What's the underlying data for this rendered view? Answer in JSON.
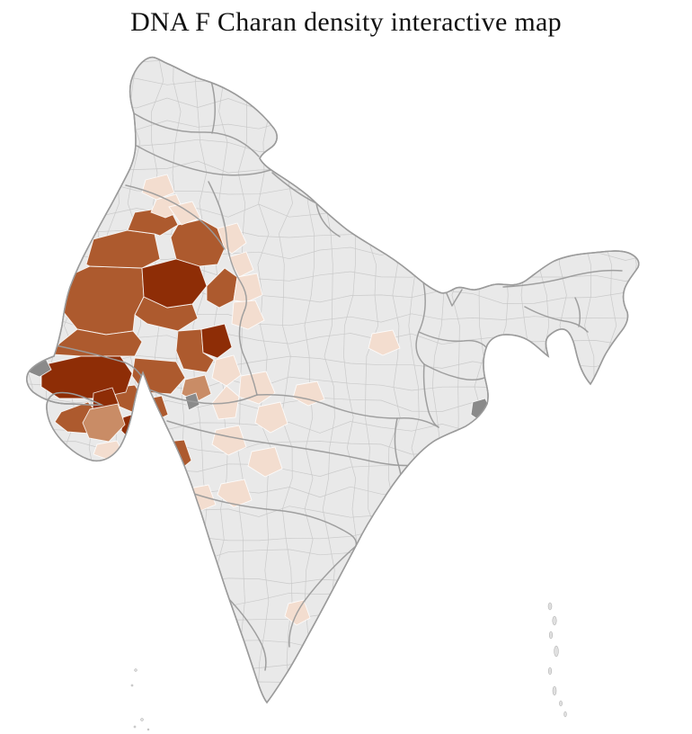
{
  "title": "DNA F Charan density interactive map",
  "map": {
    "label": "india-district-density-choropleth",
    "palette": {
      "background": "#ffffff",
      "district_default": "#e9e9e9",
      "district_line": "#c6c6c6",
      "state_line": "#9b9b9b",
      "coast_line": "#9b9b9b",
      "density_low": "#f3ddcf",
      "density_mid": "#c98c66",
      "density_high": "#ad5a2e",
      "density_max": "#8e2d06",
      "excluded_gray": "#8a8a8a",
      "island_fill": "#e0e0e0"
    }
  }
}
